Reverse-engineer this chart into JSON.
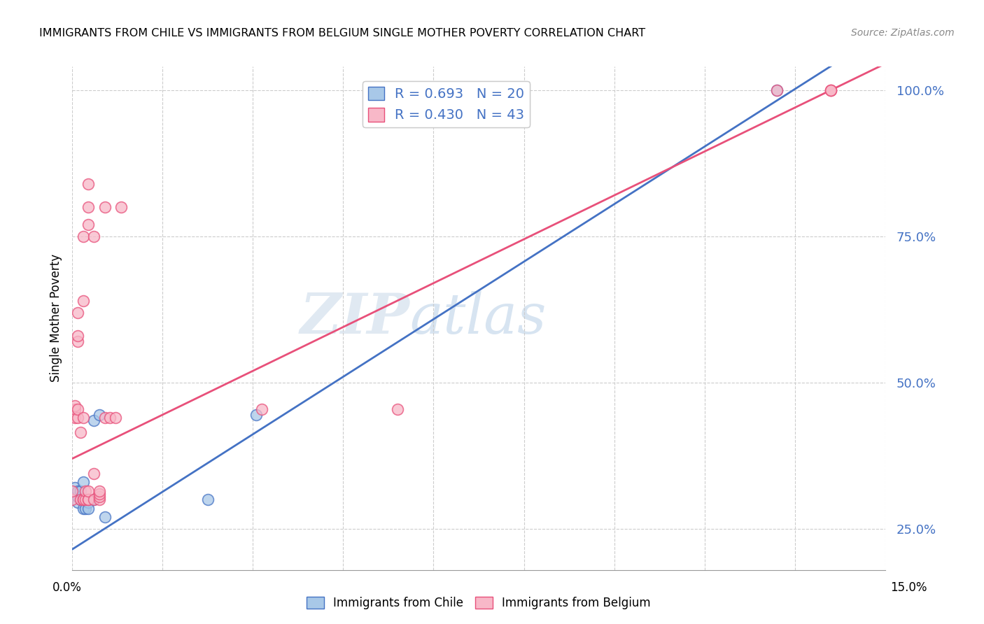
{
  "title": "IMMIGRANTS FROM CHILE VS IMMIGRANTS FROM BELGIUM SINGLE MOTHER POVERTY CORRELATION CHART",
  "source": "Source: ZipAtlas.com",
  "ylabel": "Single Mother Poverty",
  "legend_label_chile": "Immigrants from Chile",
  "legend_label_belgium": "Immigrants from Belgium",
  "chile_color": "#a8c8e8",
  "belgium_color": "#f8b8c8",
  "line_chile_color": "#4472c4",
  "line_belgium_color": "#e8507a",
  "watermark_zip": "ZIP",
  "watermark_atlas": "atlas",
  "chile_x": [
    0.0005,
    0.0005,
    0.001,
    0.001,
    0.001,
    0.0015,
    0.0015,
    0.002,
    0.002,
    0.002,
    0.0025,
    0.003,
    0.003,
    0.004,
    0.004,
    0.005,
    0.006,
    0.025,
    0.034,
    0.13
  ],
  "chile_y": [
    0.31,
    0.32,
    0.295,
    0.305,
    0.315,
    0.3,
    0.315,
    0.285,
    0.3,
    0.33,
    0.285,
    0.295,
    0.285,
    0.3,
    0.435,
    0.445,
    0.27,
    0.3,
    0.445,
    1.0
  ],
  "belgium_x": [
    0.0,
    0.0,
    0.0005,
    0.0005,
    0.0005,
    0.001,
    0.001,
    0.001,
    0.001,
    0.001,
    0.0015,
    0.0015,
    0.002,
    0.002,
    0.002,
    0.002,
    0.002,
    0.0025,
    0.0025,
    0.003,
    0.003,
    0.003,
    0.003,
    0.003,
    0.003,
    0.004,
    0.004,
    0.004,
    0.005,
    0.005,
    0.005,
    0.005,
    0.006,
    0.006,
    0.007,
    0.008,
    0.009,
    0.035,
    0.06,
    0.13,
    0.14,
    0.14,
    0.14
  ],
  "belgium_y": [
    0.3,
    0.315,
    0.44,
    0.455,
    0.46,
    0.44,
    0.455,
    0.57,
    0.58,
    0.62,
    0.3,
    0.415,
    0.3,
    0.3,
    0.44,
    0.64,
    0.75,
    0.3,
    0.315,
    0.3,
    0.3,
    0.315,
    0.77,
    0.8,
    0.84,
    0.3,
    0.345,
    0.75,
    0.3,
    0.305,
    0.31,
    0.315,
    0.44,
    0.8,
    0.44,
    0.44,
    0.8,
    0.455,
    0.455,
    1.0,
    1.0,
    1.0,
    1.0
  ],
  "xlim": [
    0.0,
    0.15
  ],
  "ylim": [
    0.18,
    1.04
  ],
  "yticks": [
    0.25,
    0.5,
    0.75,
    1.0
  ],
  "xtick_count": 10,
  "line_chile_intercept": 0.215,
  "line_chile_slope": 5.9,
  "line_belgium_intercept": 0.37,
  "line_belgium_slope": 4.5
}
